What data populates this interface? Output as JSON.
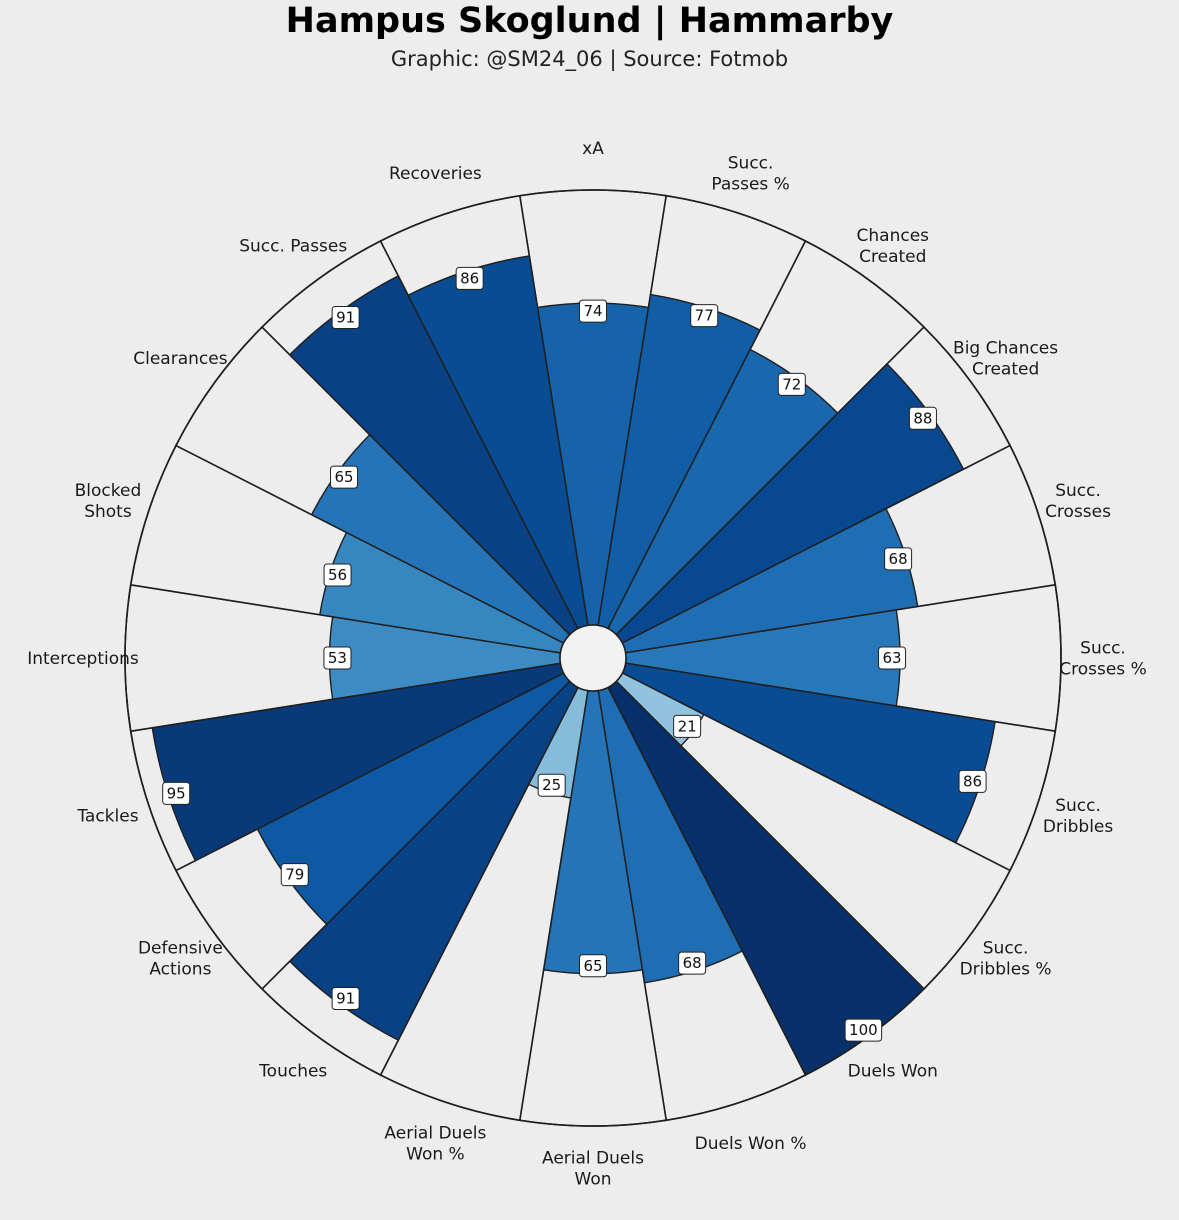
{
  "title": "Hampus Skoglund | Hammarby",
  "subtitle": "Graphic: @SM24_06 | Source: Fotmob",
  "chart_data": {
    "type": "radial-bar",
    "title": "Hampus Skoglund | Hammarby",
    "subtitle": "Graphic: @SM24_06 | Source: Fotmob",
    "scale": [
      0,
      100
    ],
    "direction": "clockwise from top",
    "categories": [
      "xA",
      "Succ.\nPasses %",
      "Chances\nCreated",
      "Big Chances\nCreated",
      "Succ.\nCrosses",
      "Succ.\nCrosses %",
      "Succ.\nDribbles",
      "Succ.\nDribbles %",
      "Duels Won",
      "Duels Won %",
      "Aerial Duels\nWon",
      "Aerial Duels\nWon %",
      "Touches",
      "Defensive\nActions",
      "Tackles",
      "Interceptions",
      "Blocked\nShots",
      "Clearances",
      "Succ. Passes",
      "Recoveries"
    ],
    "values": [
      74,
      77,
      72,
      88,
      68,
      63,
      86,
      21,
      100,
      68,
      65,
      25,
      91,
      79,
      95,
      53,
      56,
      65,
      91,
      86
    ],
    "colors": {
      "background": "#ededed",
      "empty_slice": "#ededed",
      "edge": "#1f1f1f",
      "colormap": "Blues"
    }
  }
}
